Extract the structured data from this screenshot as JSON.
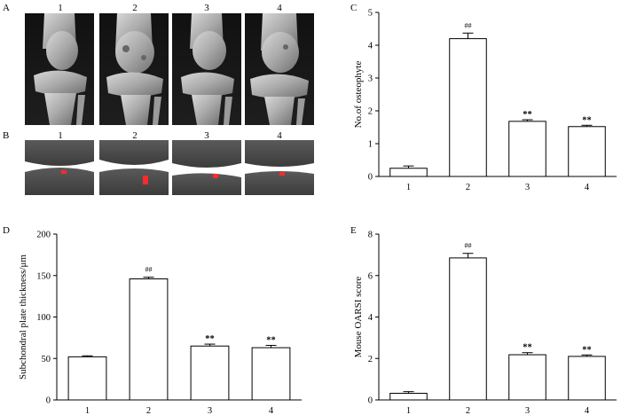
{
  "figure": {
    "panel_labels": {
      "A": "A",
      "B": "B",
      "C": "C",
      "D": "D",
      "E": "E"
    },
    "image_columns": [
      "1",
      "2",
      "3",
      "4"
    ],
    "image_row_a_content": "3D micro-CT renderings of mouse knee joints (greyscale)",
    "image_row_b_content": "sagittal micro-CT sections with red markers of subchondral plate",
    "colors": {
      "bar_fill": "#ffffff",
      "bar_stroke": "#000000",
      "marker_red": "#ff2a2a"
    }
  },
  "chart_data": [
    {
      "id": "C",
      "type": "bar",
      "categories": [
        "1",
        "2",
        "3",
        "4"
      ],
      "values": [
        0.25,
        4.2,
        1.68,
        1.52
      ],
      "errors": [
        0.07,
        0.17,
        0.05,
        0.04
      ],
      "annotations": [
        "",
        "##",
        "**",
        "**"
      ],
      "title": "",
      "xlabel": "",
      "ylabel": "No.of osteophyte",
      "ylim": [
        0,
        5
      ],
      "yticks": [
        "0",
        "1",
        "2",
        "3",
        "4",
        "5"
      ],
      "grid": false
    },
    {
      "id": "D",
      "type": "bar",
      "categories": [
        "1",
        "2",
        "3",
        "4"
      ],
      "values": [
        52,
        146,
        65,
        63
      ],
      "errors": [
        1.2,
        2,
        2.3,
        2.8
      ],
      "annotations": [
        "",
        "##",
        "**",
        "**"
      ],
      "title": "",
      "xlabel": "",
      "ylabel": "Subchondral plate thickness/μm",
      "ylim": [
        0,
        200
      ],
      "yticks": [
        "0",
        "50",
        "100",
        "150",
        "200"
      ],
      "grid": false
    },
    {
      "id": "E",
      "type": "bar",
      "categories": [
        "1",
        "2",
        "3",
        "4"
      ],
      "values": [
        0.32,
        6.85,
        2.18,
        2.1
      ],
      "errors": [
        0.08,
        0.22,
        0.1,
        0.07
      ],
      "annotations": [
        "",
        "##",
        "**",
        "**"
      ],
      "title": "",
      "xlabel": "",
      "ylabel": "Mouse OARSI score",
      "ylim": [
        0,
        8
      ],
      "yticks": [
        "0",
        "2",
        "4",
        "6",
        "8"
      ],
      "grid": false
    }
  ]
}
